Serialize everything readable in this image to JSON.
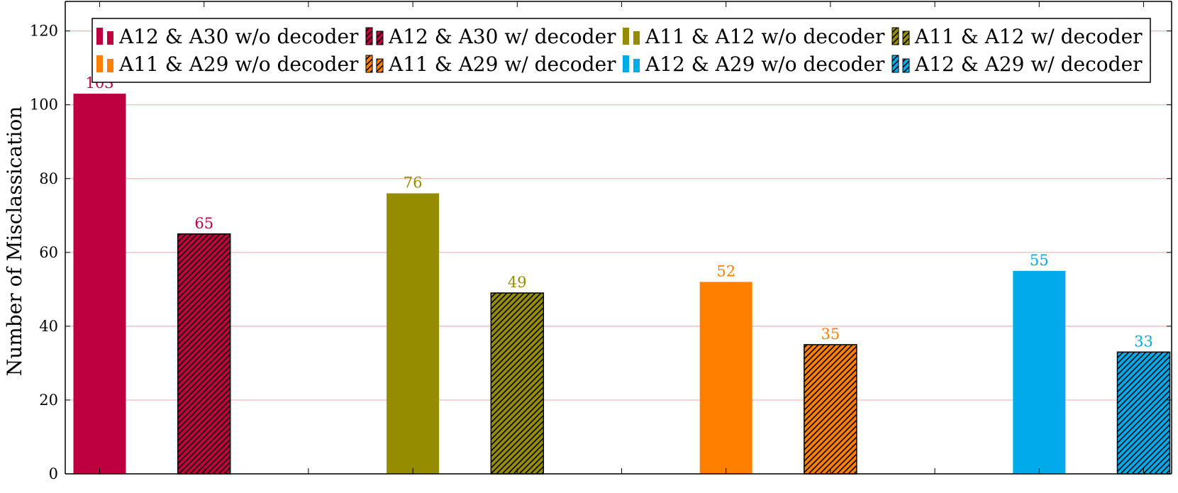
{
  "chart_data": {
    "type": "bar",
    "title": "",
    "xlabel": "",
    "ylabel": "Number of Misclassication",
    "ylim": [
      0,
      128
    ],
    "yticks": [
      0,
      20,
      40,
      60,
      80,
      100,
      120
    ],
    "grid": true,
    "legend_position": "top",
    "series": [
      {
        "name": "A12 & A30 w/o decoder",
        "value": 103,
        "color": "#BE0041",
        "hatched": false
      },
      {
        "name": "A12 & A30 w/ decoder",
        "value": 65,
        "color": "#BE0041",
        "hatched": true
      },
      {
        "name": "A11 & A12 w/o decoder",
        "value": 76,
        "color": "#968C00",
        "hatched": false
      },
      {
        "name": "A11 & A12 w/ decoder",
        "value": 49,
        "color": "#968C00",
        "hatched": true
      },
      {
        "name": "A11 & A29 w/o decoder",
        "value": 52,
        "color": "#FF8000",
        "hatched": false
      },
      {
        "name": "A11 & A29 w/ decoder",
        "value": 35,
        "color": "#FF8000",
        "hatched": true
      },
      {
        "name": "A12 & A29 w/o decoder",
        "value": 55,
        "color": "#00AAEB",
        "hatched": false
      },
      {
        "name": "A12 & A29 w/ decoder",
        "value": 33,
        "color": "#00AAEB",
        "hatched": true
      }
    ]
  },
  "colors": {
    "grid": "#F5B4B4",
    "axis": "#000000"
  }
}
